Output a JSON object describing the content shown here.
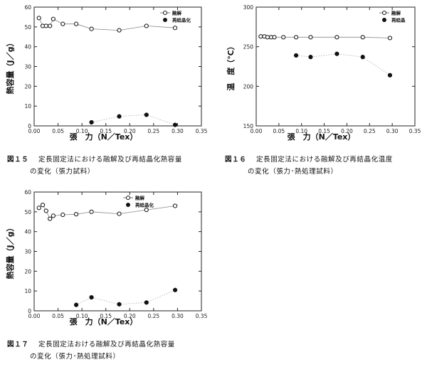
{
  "charts": [
    {
      "type": "scatter",
      "xlabel": "張　力（N／Tex）",
      "ylabel": "熱容量（J／g）",
      "xlim": [
        0,
        0.35
      ],
      "ylim": [
        0,
        60
      ],
      "xticks": [
        0.0,
        0.05,
        0.1,
        0.15,
        0.2,
        0.25,
        0.3,
        0.35
      ],
      "xtick_labels": [
        "0.00",
        "0.05",
        "0.10",
        "0.15",
        "0.20",
        "0.25",
        "0.30",
        "0.35"
      ],
      "yticks": [
        0,
        10,
        20,
        30,
        40,
        50,
        60
      ],
      "ytick_labels": [
        "0",
        "10",
        "20",
        "30",
        "40",
        "50",
        "60"
      ],
      "legend_position": "top-right",
      "series": [
        {
          "name": "融解",
          "marker": "open-circle",
          "x": [
            0.01,
            0.018,
            0.025,
            0.033,
            0.04,
            0.06,
            0.088,
            0.12,
            0.178,
            0.235,
            0.295
          ],
          "y": [
            54.5,
            50.5,
            50.5,
            50.5,
            54,
            51.5,
            51.5,
            49,
            48.3,
            50.5,
            49.5
          ]
        },
        {
          "name": "再結晶化",
          "marker": "filled-circle",
          "x": [
            0.12,
            0.178,
            0.235,
            0.295
          ],
          "y": [
            1.8,
            4.8,
            5.6,
            0.5
          ]
        }
      ],
      "caption_number": "図１５",
      "caption_line1": "定長固定法における融解及び再結晶化熱容量",
      "caption_line2": "の変化（張力試料）"
    },
    {
      "type": "scatter",
      "xlabel": "張　力（N／Tex）",
      "ylabel": "温　度（℃）",
      "xlim": [
        0,
        0.35
      ],
      "ylim": [
        150,
        300
      ],
      "xticks": [
        0.0,
        0.05,
        0.1,
        0.15,
        0.2,
        0.25,
        0.3,
        0.35
      ],
      "xtick_labels": [
        "0.00",
        "0.05",
        "0.10",
        "0.15",
        "0.20",
        "0.25",
        "0.30",
        "0.35"
      ],
      "yticks": [
        150,
        200,
        250,
        300
      ],
      "ytick_labels": [
        "150",
        "200",
        "250",
        "300"
      ],
      "legend_position": "top-right",
      "series": [
        {
          "name": "融解",
          "marker": "open-circle",
          "x": [
            0.01,
            0.018,
            0.025,
            0.033,
            0.04,
            0.06,
            0.088,
            0.12,
            0.178,
            0.235,
            0.295
          ],
          "y": [
            263,
            263,
            262,
            262,
            262,
            262,
            262,
            262,
            262,
            262,
            261
          ]
        },
        {
          "name": "再結晶",
          "marker": "filled-circle",
          "x": [
            0.088,
            0.12,
            0.178,
            0.235,
            0.295
          ],
          "y": [
            239,
            237,
            241,
            237,
            214
          ]
        }
      ],
      "caption_number": "図１６",
      "caption_line1": "定長固定法における融解及び再結晶化温度",
      "caption_line2": "の変化（張力･熱処理試料）"
    },
    {
      "type": "scatter",
      "xlabel": "張　力（N／Tex）",
      "ylabel": "熱容量（J／g）",
      "xlim": [
        0,
        0.35
      ],
      "ylim": [
        0,
        60
      ],
      "xticks": [
        0.0,
        0.05,
        0.1,
        0.15,
        0.2,
        0.25,
        0.3,
        0.35
      ],
      "xtick_labels": [
        "0.00",
        "0.05",
        "0.10",
        "0.15",
        "0.20",
        "0.25",
        "0.30",
        "0.35"
      ],
      "yticks": [
        0,
        10,
        20,
        30,
        40,
        50,
        60
      ],
      "ytick_labels": [
        "0",
        "10",
        "20",
        "30",
        "40",
        "50",
        "60"
      ],
      "legend_position": "top-right",
      "series": [
        {
          "name": "融解",
          "marker": "open-circle",
          "x": [
            0.01,
            0.018,
            0.025,
            0.033,
            0.04,
            0.06,
            0.088,
            0.12,
            0.178,
            0.235,
            0.295
          ],
          "y": [
            52,
            53.5,
            50.5,
            46.5,
            48,
            48.5,
            48.8,
            50,
            49,
            51,
            53
          ]
        },
        {
          "name": "再結晶化",
          "marker": "filled-circle",
          "x": [
            0.088,
            0.12,
            0.178,
            0.235,
            0.295
          ],
          "y": [
            3,
            6.8,
            3.3,
            4.2,
            10.5
          ]
        }
      ],
      "caption_number": "図１７",
      "caption_line1": "定長固定法おける融解及び再結晶化熱容量",
      "caption_line2": "の変化（張力･熱処理試料）"
    }
  ]
}
